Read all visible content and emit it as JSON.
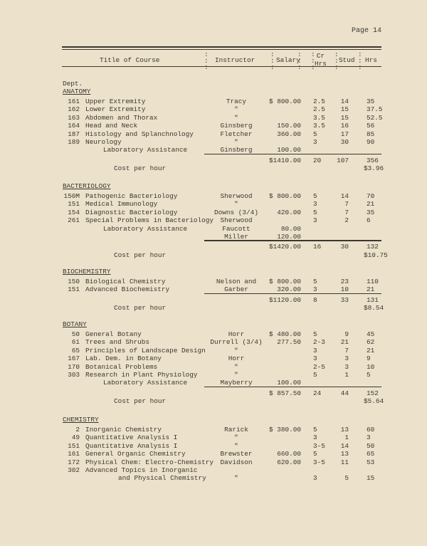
{
  "page_label": "Page 14",
  "header": {
    "title": "Title of Course",
    "instructor": "Instructor",
    "salary": "Salary",
    "cr_hrs": "Cr\nHrs",
    "stud": "Stud",
    "hrs": "Hrs",
    "colon": ":"
  },
  "dept_label": "Dept.",
  "sections": [
    {
      "name": "ANATOMY",
      "courses": [
        {
          "num": "161",
          "title": "Upper Extremity",
          "instructor": "Tracy",
          "salary": "$ 800.00",
          "cr": "2.5",
          "stud": "14",
          "hrs": "35"
        },
        {
          "num": "162",
          "title": "Lower Extremity",
          "instructor": "\"",
          "salary": "",
          "cr": "2.5",
          "stud": "15",
          "hrs": "37.5"
        },
        {
          "num": "163",
          "title": "Abdomen and Thorax",
          "instructor": "\"",
          "salary": "",
          "cr": "3.5",
          "stud": "15",
          "hrs": "52.5"
        },
        {
          "num": "164",
          "title": "Head and Neck",
          "instructor": "Ginsberg",
          "salary": "150.00",
          "cr": "3.5",
          "stud": "16",
          "hrs": "56"
        },
        {
          "num": "187",
          "title": "Histology and Splanchnology",
          "instructor": "Fletcher",
          "salary": "360.00",
          "cr": "5",
          "stud": "17",
          "hrs": "85"
        },
        {
          "num": "189",
          "title": "Neurology",
          "instructor": "\"",
          "salary": "",
          "cr": "3",
          "stud": "30",
          "hrs": "90"
        },
        {
          "num": "",
          "title": "Laboratory Assistance",
          "indent": true,
          "instructor": "Ginsberg",
          "salary": "100.00",
          "cr": "",
          "stud": "",
          "hrs": ""
        }
      ],
      "total": {
        "salary": "$1410.00",
        "cr": "20",
        "stud": "107",
        "hrs": "356"
      },
      "cost_label": "Cost per hour",
      "cost_value": "$3.96"
    },
    {
      "name": "BACTERIOLOGY",
      "courses": [
        {
          "num": "150M",
          "title": "Pathogenic Bacteriology",
          "instructor": "Sherwood",
          "salary": "$ 800.00",
          "cr": "5",
          "stud": "14",
          "hrs": "70"
        },
        {
          "num": "151",
          "title": "Medical Immunology",
          "instructor": "\"",
          "salary": "",
          "cr": "3",
          "stud": "7",
          "hrs": "21"
        },
        {
          "num": "154",
          "title": "Diagnostic Bacteriology",
          "instructor": "Downs (3/4)",
          "salary": "420.00",
          "cr": "5",
          "stud": "7",
          "hrs": "35"
        },
        {
          "num": "261",
          "title": "Special Problems in Bacteriology",
          "instructor": "Sherwood",
          "salary": "",
          "cr": "3",
          "stud": "2",
          "hrs": "6"
        },
        {
          "num": "",
          "title": "Laboratory Assistance",
          "indent": true,
          "instructor": "Faucott",
          "salary": "80.00",
          "cr": "",
          "stud": "",
          "hrs": ""
        },
        {
          "num": "",
          "title": "",
          "instructor": "Miller",
          "salary": "120.00",
          "cr": "",
          "stud": "",
          "hrs": ""
        }
      ],
      "total": {
        "salary": "$1420.00",
        "cr": "16",
        "stud": "30",
        "hrs": "132"
      },
      "cost_label": "Cost per hour",
      "cost_value": "$10.75"
    },
    {
      "name": "BIOCHEMISTRY",
      "courses": [
        {
          "num": "150",
          "title": "Biological Chemistry",
          "instructor": "Nelson and",
          "salary": "$ 800.00",
          "cr": "5",
          "stud": "23",
          "hrs": "110"
        },
        {
          "num": "151",
          "title": "Advanced Biochemistry",
          "instructor": "Garber",
          "salary": "320.00",
          "cr": "3",
          "stud": "10",
          "hrs": "21"
        }
      ],
      "total": {
        "salary": "$1120.00",
        "cr": "8",
        "stud": "33",
        "hrs": "131"
      },
      "cost_label": "Cost per hour",
      "cost_value": "$8.54"
    },
    {
      "name": "BOTANY",
      "courses": [
        {
          "num": "50",
          "title": "General Botany",
          "instructor": "Horr",
          "salary": "$ 480.00",
          "cr": "5",
          "stud": "9",
          "hrs": "45"
        },
        {
          "num": "61",
          "title": "Trees and Shrubs",
          "instructor": "Durrell (3/4)",
          "salary": "277.50",
          "cr": "2-3",
          "stud": "21",
          "hrs": "62"
        },
        {
          "num": "65",
          "title": "Principles of Landscape Design",
          "instructor": "\"",
          "salary": "",
          "cr": "3",
          "stud": "7",
          "hrs": "21"
        },
        {
          "num": "167",
          "title": "Lab. Dem. in Botany",
          "instructor": "Horr",
          "salary": "",
          "cr": "3",
          "stud": "3",
          "hrs": "9"
        },
        {
          "num": "170",
          "title": "Botanical Problems",
          "instructor": "\"",
          "salary": "",
          "cr": "2-5",
          "stud": "3",
          "hrs": "10"
        },
        {
          "num": "303",
          "title": "Research in Plant Physiology",
          "instructor": "\"",
          "salary": "",
          "cr": "5",
          "stud": "1",
          "hrs": "5"
        },
        {
          "num": "",
          "title": "Laboratory Assistance",
          "indent": true,
          "instructor": "Mayberry",
          "salary": "100.00",
          "cr": "",
          "stud": "",
          "hrs": ""
        }
      ],
      "total": {
        "salary": "$ 857.50",
        "cr": "24",
        "stud": "44",
        "hrs": "152"
      },
      "cost_label": "Cost per hour",
      "cost_value": "$5.64"
    },
    {
      "name": "CHEMISTRY",
      "courses": [
        {
          "num": "2",
          "title": "Inorganic Chemistry",
          "instructor": "Rarick",
          "salary": "$ 380.00",
          "cr": "5",
          "stud": "13",
          "hrs": "60"
        },
        {
          "num": "49",
          "title": "Quantitative Analysis I",
          "instructor": "\"",
          "salary": "",
          "cr": "3",
          "stud": "1",
          "hrs": "3"
        },
        {
          "num": "151",
          "title": "Quantitative Analysis I",
          "instructor": "\"",
          "salary": "",
          "cr": "3-5",
          "stud": "14",
          "hrs": "50"
        },
        {
          "num": "161",
          "title": "General Organic Chemistry",
          "instructor": "Brewster",
          "salary": "660.00",
          "cr": "5",
          "stud": "13",
          "hrs": "65"
        },
        {
          "num": "172",
          "title": "Physical Chem: Electro-Chemistry",
          "instructor": "Davidson",
          "salary": "620.00",
          "cr": "3-5",
          "stud": "11",
          "hrs": "53"
        },
        {
          "num": "302",
          "title": "Advanced Topics in Inorganic",
          "title2": "and Physical Chemistry",
          "instructor": "\"",
          "salary": "",
          "cr": "3",
          "stud": "5",
          "hrs": "15"
        }
      ]
    }
  ]
}
